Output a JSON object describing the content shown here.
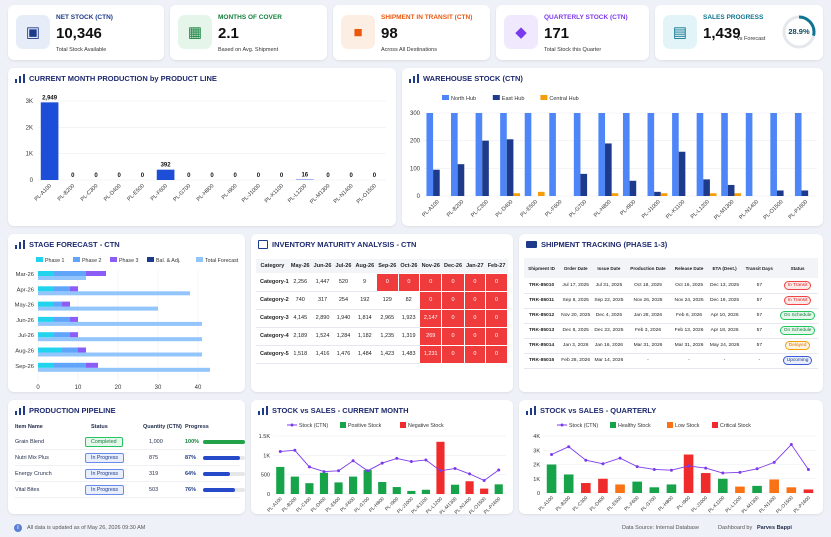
{
  "kpis": [
    {
      "title": "NET STOCK (CTN)",
      "value": "10,346",
      "sub": "Total Stock Available",
      "color": "#1e3a8a",
      "bg": "#e7ecf9",
      "icon": "factory-icon"
    },
    {
      "title": "MONTHS OF COVER",
      "value": "2.1",
      "sub": "Based on Avg. Shipment",
      "color": "#15803d",
      "bg": "#e5f5ea",
      "icon": "calendar-icon"
    },
    {
      "title": "SHIPMENT IN TRANSIT (CTN)",
      "value": "98",
      "sub": "Across All Destinations",
      "color": "#ea580c",
      "bg": "#fdeee3",
      "icon": "truck-icon"
    },
    {
      "title": "QUARTERLY STOCK (CTN)",
      "value": "171",
      "sub": "Total Stock this Quarter",
      "color": "#7c3aed",
      "bg": "#f0e9fd",
      "icon": "box-icon"
    },
    {
      "title": "SALES PROGRESS",
      "value": "1,439",
      "sub": "vs Forecast",
      "color": "#0e7490",
      "bg": "#e2f4f7",
      "icon": "sales-icon",
      "progress": 28.9,
      "progress_label": "28.9%"
    }
  ],
  "production": {
    "title": "CURRENT MONTH PRODUCTION by PRODUCT LINE",
    "chart_data": {
      "type": "bar",
      "categories": [
        "PL-A100",
        "PL-B200",
        "PL-C300",
        "PL-D400",
        "PL-E500",
        "PL-F600",
        "PL-G700",
        "PL-H800",
        "PL-I900",
        "PL-J1000",
        "PL-K1100",
        "PL-L1200",
        "PL-M1300",
        "PL-N1400",
        "PL-O1500"
      ],
      "values": [
        2949,
        0,
        0,
        0,
        0,
        392,
        0,
        0,
        0,
        0,
        0,
        16,
        0,
        0,
        0
      ],
      "ylim": [
        0,
        3000
      ],
      "yticks": [
        "0",
        "1K",
        "2K",
        "3K"
      ],
      "labels": [
        "2,949",
        "0",
        "0",
        "0",
        "0",
        "392",
        "0",
        "0",
        "0",
        "0",
        "0",
        "16",
        "0",
        "0",
        "0"
      ]
    }
  },
  "warehouse": {
    "title": "WAREHOUSE STOCK (CTN)",
    "chart_data": {
      "type": "bar",
      "categories": [
        "PL-A100",
        "PL-B200",
        "PL-C300",
        "PL-D400",
        "PL-E500",
        "PL-F600",
        "PL-G700",
        "PL-H800",
        "PL-I900",
        "PL-J1000",
        "PL-K1100",
        "PL-L1200",
        "PL-M1300",
        "PL-N1400",
        "PL-O1500",
        "PL-P1600"
      ],
      "series": [
        {
          "name": "North Hub",
          "color": "#4f86f7",
          "values": [
            300,
            300,
            300,
            300,
            300,
            300,
            300,
            300,
            300,
            300,
            300,
            300,
            300,
            300,
            300,
            300
          ]
        },
        {
          "name": "East Hub",
          "color": "#1e3a8a",
          "values": [
            95,
            115,
            200,
            205,
            0,
            0,
            80,
            190,
            55,
            15,
            160,
            60,
            40,
            0,
            20,
            20
          ]
        },
        {
          "name": "Central Hub",
          "color": "#f59e0b",
          "values": [
            0,
            0,
            0,
            10,
            15,
            0,
            0,
            10,
            0,
            10,
            0,
            10,
            10,
            0,
            0,
            0
          ]
        }
      ],
      "ylim": [
        0,
        300
      ],
      "yticks": [
        "0",
        "100",
        "200",
        "300"
      ]
    }
  },
  "forecast": {
    "title": "STAGE FORECAST - CTN",
    "chart_data": {
      "type": "bar",
      "categories": [
        "Mar-26",
        "Apr-26",
        "May-26",
        "Jun-26",
        "Jul-26",
        "Aug-26",
        "Sep-26"
      ],
      "series": [
        {
          "name": "Phase 1",
          "color": "#22d3ee"
        },
        {
          "name": "Phase 2",
          "color": "#60a5fa"
        },
        {
          "name": "Phase 3",
          "color": "#8b5cf6"
        },
        {
          "name": "Bal. & Adj.",
          "color": "#1e3a8a"
        },
        {
          "name": "Total Forecast",
          "color": "#93c5fd",
          "values": [
            12,
            38,
            30,
            41,
            41,
            41,
            43
          ]
        }
      ],
      "stacked": [
        [
          4,
          8,
          5,
          0
        ],
        [
          4,
          4,
          2,
          0
        ],
        [
          4,
          2,
          2,
          0
        ],
        [
          4,
          4,
          2,
          0
        ],
        [
          4,
          4,
          2,
          0
        ],
        [
          6,
          4,
          2,
          0
        ],
        [
          4,
          8,
          3,
          0
        ]
      ],
      "xlim": [
        0,
        50
      ],
      "xticks": [
        "0",
        "10",
        "20",
        "30",
        "40"
      ]
    }
  },
  "maturity": {
    "title": "INVENTORY MATURITY ANALYSIS - CTN",
    "headers": [
      "Category",
      "May-26",
      "Jun-26",
      "Jul-26",
      "Aug-26",
      "Sep-26",
      "Oct-26",
      "Nov-26",
      "Dec-26",
      "Jan-27",
      "Feb-27"
    ],
    "rows": [
      [
        "Category-1",
        "2,256",
        "1,447",
        "520",
        "9",
        "0",
        "0",
        "0",
        "0",
        "0",
        "0"
      ],
      [
        "Category-2",
        "740",
        "317",
        "254",
        "192",
        "129",
        "82",
        "0",
        "0",
        "0",
        "0"
      ],
      [
        "Category-3",
        "4,145",
        "2,890",
        "1,940",
        "1,814",
        "2,965",
        "1,923",
        "2,147",
        "0",
        "0",
        "0"
      ],
      [
        "Category-4",
        "2,189",
        "1,524",
        "1,284",
        "1,182",
        "1,235",
        "1,319",
        "269",
        "0",
        "0",
        "0"
      ],
      [
        "Category-5",
        "1,518",
        "1,416",
        "1,476",
        "1,484",
        "1,423",
        "1,483",
        "1,231",
        "0",
        "0",
        "0"
      ]
    ],
    "red_start": [
      5,
      7,
      7,
      7,
      7
    ]
  },
  "shipments": {
    "title": "SHIPMENT TRACKING (PHASE 1-3)",
    "headers": [
      "Shipment ID",
      "Order Date",
      "Issue Date",
      "Production Date",
      "Release Date",
      "ETA (Dest.)",
      "Transit Days",
      "Status"
    ],
    "rows": [
      [
        "TRK-85010",
        "Jul 17, 2025",
        "Jul 31, 2025",
        "Oct 18, 2025",
        "Oct 16, 2025",
        "Dec 13, 2025",
        "57",
        "In Transit"
      ],
      [
        "TRK-85011",
        "Sep 8, 2025",
        "Sep 22, 2025",
        "Nov 26, 2025",
        "Nov 24, 2025",
        "Dec 19, 2025",
        "57",
        "In Transit"
      ],
      [
        "TRK-85012",
        "Nov 20, 2025",
        "Dec 4, 2025",
        "Jan 28, 2026",
        "Feb 6, 2026",
        "Apr 10, 2026",
        "57",
        "On Schedule"
      ],
      [
        "TRK-85013",
        "Dec 8, 2025",
        "Dec 22, 2025",
        "Feb 3, 2026",
        "Feb 13, 2026",
        "Apr 18, 2026",
        "57",
        "On Schedule"
      ],
      [
        "TRK-85014",
        "Jan 3, 2026",
        "Jan 16, 2026",
        "Mar 31, 2026",
        "Mar 31, 2026",
        "May 24, 2026",
        "57",
        "Delayed"
      ],
      [
        "TRK-85015",
        "Feb 28, 2026",
        "Mar 14, 2026",
        "-",
        "-",
        "-",
        "-",
        "Upcoming"
      ]
    ]
  },
  "pipeline": {
    "title": "PRODUCTION PIPELINE",
    "headers": [
      "Item Name",
      "Status",
      "Quantity (CTN)",
      "Progress"
    ],
    "rows": [
      {
        "name": "Grain Blend",
        "status": "Completed",
        "qty": "1,000",
        "pct_label": "100%",
        "pct": 100
      },
      {
        "name": "Nutri Mix Plus",
        "status": "In Progress",
        "qty": "875",
        "pct_label": "87%",
        "pct": 87
      },
      {
        "name": "Energy Crunch",
        "status": "In Progress",
        "qty": "319",
        "pct_label": "64%",
        "pct": 64
      },
      {
        "name": "Vital Bites",
        "status": "In Progress",
        "qty": "503",
        "pct_label": "76%",
        "pct": 76
      }
    ]
  },
  "stock_sales_month": {
    "title": "STOCK vs SALES - CURRENT MONTH",
    "chart_data": {
      "type": "bar",
      "categories": [
        "PL-A100",
        "PL-B200",
        "PL-C300",
        "PL-D400",
        "PL-E500",
        "PL-F600",
        "PL-G700",
        "PL-H800",
        "PL-I900",
        "PL-J1000",
        "PL-K1100",
        "PL-L1200",
        "PL-M1300",
        "PL-N1400",
        "PL-O1500",
        "PL-P1600"
      ],
      "legend": [
        "Stock (CTN)",
        "Positive Stock",
        "Negative Stock"
      ],
      "bars": [
        700,
        450,
        280,
        550,
        300,
        450,
        620,
        310,
        180,
        80,
        110,
        1350,
        240,
        330,
        140,
        250
      ],
      "bar_types": [
        "pos",
        "pos",
        "pos",
        "pos",
        "pos",
        "pos",
        "pos",
        "pos",
        "pos",
        "pos",
        "pos",
        "neg",
        "pos",
        "neg",
        "neg",
        "pos"
      ],
      "line": [
        1100,
        1130,
        700,
        580,
        600,
        860,
        600,
        800,
        920,
        840,
        880,
        600,
        660,
        520,
        350,
        620
      ],
      "ylim": [
        0,
        1500
      ],
      "yticks": [
        "0",
        "500",
        "1K",
        "1.5K"
      ]
    }
  },
  "stock_sales_quarter": {
    "title": "STOCK vs SALES - QUARTERLY",
    "chart_data": {
      "type": "bar",
      "categories": [
        "PL-A100",
        "PL-B200",
        "PL-C300",
        "PL-D400",
        "PL-E500",
        "PL-F600",
        "PL-G700",
        "PL-H800",
        "PL-I900",
        "PL-J1000",
        "PL-K1100",
        "PL-L1200",
        "PL-M1300",
        "PL-N1400",
        "PL-O1500",
        "PL-P1600"
      ],
      "legend": [
        "Stock (CTN)",
        "Healthy Stock",
        "Low Stock",
        "Critical Stock"
      ],
      "bars": [
        2000,
        1300,
        700,
        1000,
        600,
        800,
        400,
        600,
        2700,
        1400,
        1000,
        450,
        500,
        950,
        400,
        250
      ],
      "bar_types": [
        "healthy",
        "healthy",
        "critical",
        "critical",
        "low",
        "healthy",
        "healthy",
        "healthy",
        "critical",
        "critical",
        "healthy",
        "low",
        "healthy",
        "low",
        "low",
        "critical"
      ],
      "line": [
        2700,
        3250,
        2300,
        2050,
        2450,
        1850,
        1650,
        1600,
        1900,
        1750,
        1400,
        1450,
        1700,
        2150,
        3400,
        1650
      ],
      "ylim": [
        0,
        4000
      ],
      "yticks": [
        "0",
        "1K",
        "2K",
        "3K",
        "4K"
      ]
    }
  },
  "footer": {
    "note": "All data is updated as of May 26, 2026 09:30 AM",
    "source": "Data Source: Internal Database",
    "credit_prefix": "Dashboard by",
    "credit_name": "Parves Bappi"
  }
}
